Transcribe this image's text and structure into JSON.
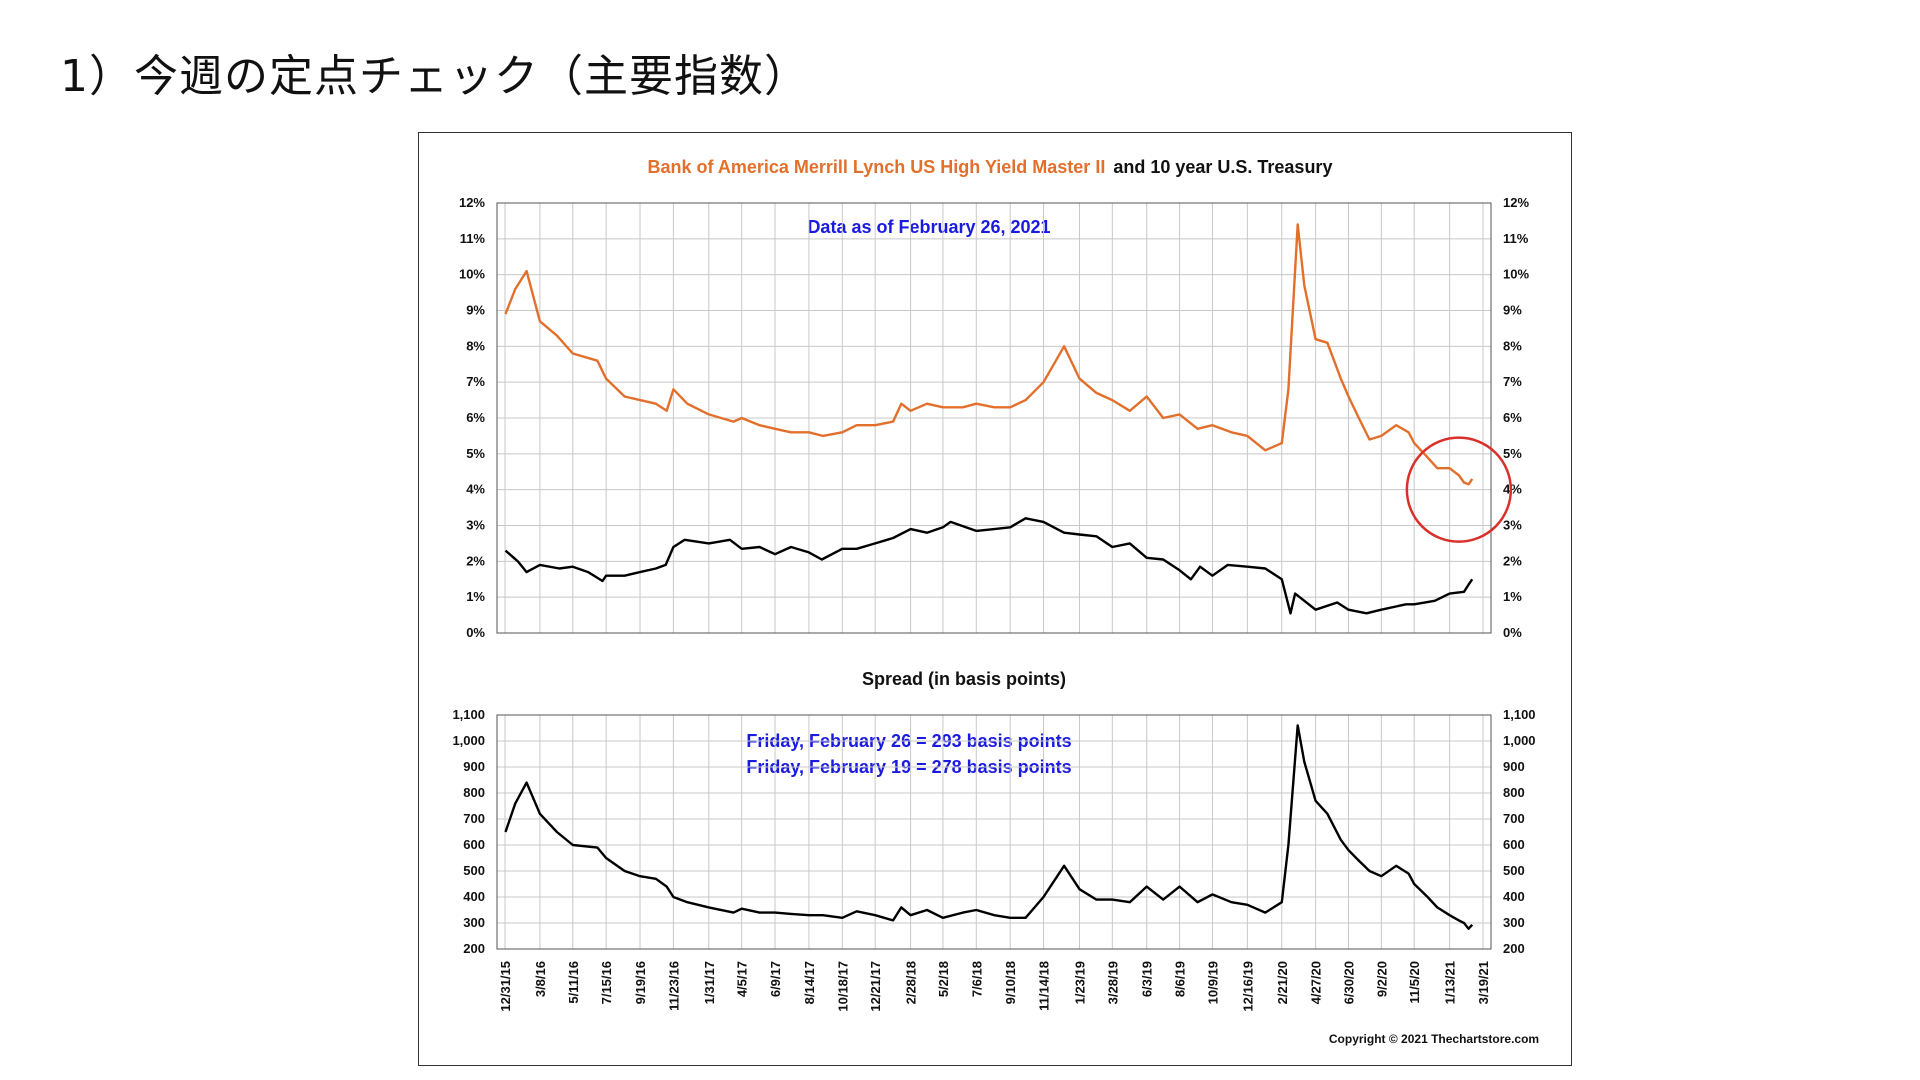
{
  "slide": {
    "title": "1）今週の定点チェック（主要指数）"
  },
  "chart_data": {
    "type": "line",
    "title_orange": "Bank of America Merrill Lynch US High Yield Master II",
    "title_black": "and 10 year U.S. Treasury",
    "note_top": "Data as of February 26, 2021",
    "spread_title": "Spread (in basis points)",
    "spread_note_1": "Friday, February 26 = 293 basis points",
    "spread_note_2": "Friday, February 19 = 278 basis points",
    "copyright": "Copyright © 2021 Thechartstore.com",
    "highlight_color": "#d9302a",
    "colors": {
      "high_yield": "#e2702c",
      "treasury": "#000000",
      "spread": "#000000"
    },
    "top_ylim": [
      0,
      12
    ],
    "top_yticks": [
      "0%",
      "1%",
      "2%",
      "3%",
      "4%",
      "5%",
      "6%",
      "7%",
      "8%",
      "9%",
      "10%",
      "11%",
      "12%"
    ],
    "bottom_ylim": [
      200,
      1100
    ],
    "bottom_yticks": [
      "200",
      "300",
      "400",
      "500",
      "600",
      "700",
      "800",
      "900",
      "1,000",
      "1,100"
    ],
    "x_range": [
      "2015-12-31",
      "2021-03-19"
    ],
    "x_ticks": [
      "12/31/15",
      "3/8/16",
      "5/11/16",
      "7/15/16",
      "9/19/16",
      "11/23/16",
      "1/31/17",
      "4/5/17",
      "6/9/17",
      "8/14/17",
      "10/18/17",
      "12/21/17",
      "2/28/18",
      "5/2/18",
      "7/6/18",
      "9/10/18",
      "11/14/18",
      "1/23/19",
      "3/28/19",
      "6/3/19",
      "8/6/19",
      "10/9/19",
      "12/16/19",
      "2/21/20",
      "4/27/20",
      "6/30/20",
      "9/2/20",
      "11/5/20",
      "1/13/21",
      "3/19/21"
    ],
    "series": [
      {
        "name": "Bank of America Merrill Lynch US High Yield Master II",
        "axis": "top",
        "points": [
          [
            "2016-01-01",
            8.9
          ],
          [
            "2016-01-20",
            9.6
          ],
          [
            "2016-02-11",
            10.1
          ],
          [
            "2016-03-08",
            8.7
          ],
          [
            "2016-04-10",
            8.3
          ],
          [
            "2016-05-11",
            7.8
          ],
          [
            "2016-06-28",
            7.6
          ],
          [
            "2016-07-15",
            7.1
          ],
          [
            "2016-08-20",
            6.6
          ],
          [
            "2016-09-19",
            6.5
          ],
          [
            "2016-10-20",
            6.4
          ],
          [
            "2016-11-10",
            6.2
          ],
          [
            "2016-11-23",
            6.8
          ],
          [
            "2016-12-20",
            6.4
          ],
          [
            "2017-01-31",
            6.1
          ],
          [
            "2017-03-20",
            5.9
          ],
          [
            "2017-04-05",
            6.0
          ],
          [
            "2017-05-10",
            5.8
          ],
          [
            "2017-06-09",
            5.7
          ],
          [
            "2017-07-10",
            5.6
          ],
          [
            "2017-08-14",
            5.6
          ],
          [
            "2017-09-10",
            5.5
          ],
          [
            "2017-10-18",
            5.6
          ],
          [
            "2017-11-15",
            5.8
          ],
          [
            "2017-12-21",
            5.8
          ],
          [
            "2018-01-25",
            5.9
          ],
          [
            "2018-02-10",
            6.4
          ],
          [
            "2018-02-28",
            6.2
          ],
          [
            "2018-04-01",
            6.4
          ],
          [
            "2018-05-02",
            6.3
          ],
          [
            "2018-06-10",
            6.3
          ],
          [
            "2018-07-06",
            6.4
          ],
          [
            "2018-08-10",
            6.3
          ],
          [
            "2018-09-10",
            6.3
          ],
          [
            "2018-10-10",
            6.5
          ],
          [
            "2018-11-14",
            7.0
          ],
          [
            "2018-12-24",
            8.0
          ],
          [
            "2019-01-23",
            7.1
          ],
          [
            "2019-02-25",
            6.7
          ],
          [
            "2019-03-28",
            6.5
          ],
          [
            "2019-05-01",
            6.2
          ],
          [
            "2019-06-03",
            6.6
          ],
          [
            "2019-07-05",
            6.0
          ],
          [
            "2019-08-06",
            6.1
          ],
          [
            "2019-09-10",
            5.7
          ],
          [
            "2019-10-09",
            5.8
          ],
          [
            "2019-11-15",
            5.6
          ],
          [
            "2019-12-16",
            5.5
          ],
          [
            "2020-01-20",
            5.1
          ],
          [
            "2020-02-21",
            5.3
          ],
          [
            "2020-03-05",
            6.8
          ],
          [
            "2020-03-23",
            11.4
          ],
          [
            "2020-04-05",
            9.7
          ],
          [
            "2020-04-27",
            8.2
          ],
          [
            "2020-05-20",
            8.1
          ],
          [
            "2020-06-15",
            7.1
          ],
          [
            "2020-06-30",
            6.6
          ],
          [
            "2020-07-20",
            6.0
          ],
          [
            "2020-08-10",
            5.4
          ],
          [
            "2020-09-02",
            5.5
          ],
          [
            "2020-10-01",
            5.8
          ],
          [
            "2020-10-25",
            5.6
          ],
          [
            "2020-11-05",
            5.3
          ],
          [
            "2020-12-01",
            4.9
          ],
          [
            "2020-12-20",
            4.6
          ],
          [
            "2021-01-13",
            4.6
          ],
          [
            "2021-01-31",
            4.4
          ],
          [
            "2021-02-10",
            4.2
          ],
          [
            "2021-02-19",
            4.15
          ],
          [
            "2021-02-26",
            4.3
          ]
        ]
      },
      {
        "name": "10 year U.S. Treasury",
        "axis": "top",
        "points": [
          [
            "2016-01-01",
            2.3
          ],
          [
            "2016-01-25",
            2.0
          ],
          [
            "2016-02-11",
            1.7
          ],
          [
            "2016-03-08",
            1.9
          ],
          [
            "2016-04-15",
            1.8
          ],
          [
            "2016-05-11",
            1.85
          ],
          [
            "2016-06-10",
            1.7
          ],
          [
            "2016-07-08",
            1.45
          ],
          [
            "2016-07-15",
            1.6
          ],
          [
            "2016-08-20",
            1.6
          ],
          [
            "2016-09-19",
            1.7
          ],
          [
            "2016-10-20",
            1.8
          ],
          [
            "2016-11-08",
            1.9
          ],
          [
            "2016-11-23",
            2.4
          ],
          [
            "2016-12-15",
            2.6
          ],
          [
            "2017-01-31",
            2.5
          ],
          [
            "2017-03-13",
            2.6
          ],
          [
            "2017-04-05",
            2.35
          ],
          [
            "2017-05-10",
            2.4
          ],
          [
            "2017-06-09",
            2.2
          ],
          [
            "2017-07-10",
            2.4
          ],
          [
            "2017-08-14",
            2.25
          ],
          [
            "2017-09-08",
            2.05
          ],
          [
            "2017-10-18",
            2.35
          ],
          [
            "2017-11-15",
            2.35
          ],
          [
            "2017-12-21",
            2.5
          ],
          [
            "2018-01-25",
            2.65
          ],
          [
            "2018-02-28",
            2.9
          ],
          [
            "2018-04-01",
            2.8
          ],
          [
            "2018-05-02",
            2.95
          ],
          [
            "2018-05-17",
            3.1
          ],
          [
            "2018-07-06",
            2.85
          ],
          [
            "2018-08-10",
            2.9
          ],
          [
            "2018-09-10",
            2.95
          ],
          [
            "2018-10-10",
            3.2
          ],
          [
            "2018-11-14",
            3.1
          ],
          [
            "2018-12-24",
            2.8
          ],
          [
            "2019-01-23",
            2.75
          ],
          [
            "2019-02-25",
            2.7
          ],
          [
            "2019-03-28",
            2.4
          ],
          [
            "2019-05-01",
            2.5
          ],
          [
            "2019-06-03",
            2.1
          ],
          [
            "2019-07-05",
            2.05
          ],
          [
            "2019-08-06",
            1.75
          ],
          [
            "2019-08-28",
            1.5
          ],
          [
            "2019-09-15",
            1.85
          ],
          [
            "2019-10-09",
            1.6
          ],
          [
            "2019-11-08",
            1.9
          ],
          [
            "2019-12-16",
            1.85
          ],
          [
            "2020-01-20",
            1.8
          ],
          [
            "2020-02-21",
            1.5
          ],
          [
            "2020-03-09",
            0.55
          ],
          [
            "2020-03-18",
            1.1
          ],
          [
            "2020-04-27",
            0.65
          ],
          [
            "2020-06-08",
            0.85
          ],
          [
            "2020-06-30",
            0.65
          ],
          [
            "2020-08-04",
            0.55
          ],
          [
            "2020-09-02",
            0.65
          ],
          [
            "2020-10-20",
            0.8
          ],
          [
            "2020-11-05",
            0.8
          ],
          [
            "2020-12-15",
            0.9
          ],
          [
            "2021-01-13",
            1.1
          ],
          [
            "2021-02-10",
            1.15
          ],
          [
            "2021-02-19",
            1.35
          ],
          [
            "2021-02-26",
            1.5
          ]
        ]
      },
      {
        "name": "Spread (in basis points)",
        "axis": "bottom",
        "points": [
          [
            "2016-01-01",
            650
          ],
          [
            "2016-01-20",
            760
          ],
          [
            "2016-02-11",
            840
          ],
          [
            "2016-03-08",
            720
          ],
          [
            "2016-04-10",
            650
          ],
          [
            "2016-05-11",
            600
          ],
          [
            "2016-06-28",
            590
          ],
          [
            "2016-07-15",
            550
          ],
          [
            "2016-08-20",
            500
          ],
          [
            "2016-09-19",
            480
          ],
          [
            "2016-10-20",
            470
          ],
          [
            "2016-11-10",
            440
          ],
          [
            "2016-11-23",
            400
          ],
          [
            "2016-12-20",
            380
          ],
          [
            "2017-01-31",
            360
          ],
          [
            "2017-03-20",
            340
          ],
          [
            "2017-04-05",
            355
          ],
          [
            "2017-05-10",
            340
          ],
          [
            "2017-06-09",
            340
          ],
          [
            "2017-07-10",
            335
          ],
          [
            "2017-08-14",
            330
          ],
          [
            "2017-09-10",
            330
          ],
          [
            "2017-10-18",
            320
          ],
          [
            "2017-11-15",
            345
          ],
          [
            "2017-12-21",
            330
          ],
          [
            "2018-01-25",
            310
          ],
          [
            "2018-02-10",
            360
          ],
          [
            "2018-02-28",
            330
          ],
          [
            "2018-04-01",
            350
          ],
          [
            "2018-05-02",
            320
          ],
          [
            "2018-06-10",
            340
          ],
          [
            "2018-07-06",
            350
          ],
          [
            "2018-08-10",
            330
          ],
          [
            "2018-09-10",
            320
          ],
          [
            "2018-10-10",
            320
          ],
          [
            "2018-11-14",
            400
          ],
          [
            "2018-12-24",
            520
          ],
          [
            "2019-01-23",
            430
          ],
          [
            "2019-02-25",
            390
          ],
          [
            "2019-03-28",
            390
          ],
          [
            "2019-05-01",
            380
          ],
          [
            "2019-06-03",
            440
          ],
          [
            "2019-07-05",
            390
          ],
          [
            "2019-08-06",
            440
          ],
          [
            "2019-09-10",
            380
          ],
          [
            "2019-10-09",
            410
          ],
          [
            "2019-11-15",
            380
          ],
          [
            "2019-12-16",
            370
          ],
          [
            "2020-01-20",
            340
          ],
          [
            "2020-02-21",
            380
          ],
          [
            "2020-03-05",
            600
          ],
          [
            "2020-03-23",
            1060
          ],
          [
            "2020-04-05",
            920
          ],
          [
            "2020-04-27",
            770
          ],
          [
            "2020-05-20",
            720
          ],
          [
            "2020-06-15",
            620
          ],
          [
            "2020-06-30",
            580
          ],
          [
            "2020-07-20",
            540
          ],
          [
            "2020-08-10",
            500
          ],
          [
            "2020-09-02",
            480
          ],
          [
            "2020-10-01",
            520
          ],
          [
            "2020-10-25",
            490
          ],
          [
            "2020-11-05",
            450
          ],
          [
            "2020-12-01",
            400
          ],
          [
            "2020-12-20",
            360
          ],
          [
            "2021-01-13",
            330
          ],
          [
            "2021-01-31",
            310
          ],
          [
            "2021-02-10",
            300
          ],
          [
            "2021-02-19",
            278
          ],
          [
            "2021-02-26",
            293
          ]
        ]
      }
    ],
    "highlight": {
      "center_date": "2021-01-31",
      "center_value": 4.0,
      "label": ""
    }
  }
}
